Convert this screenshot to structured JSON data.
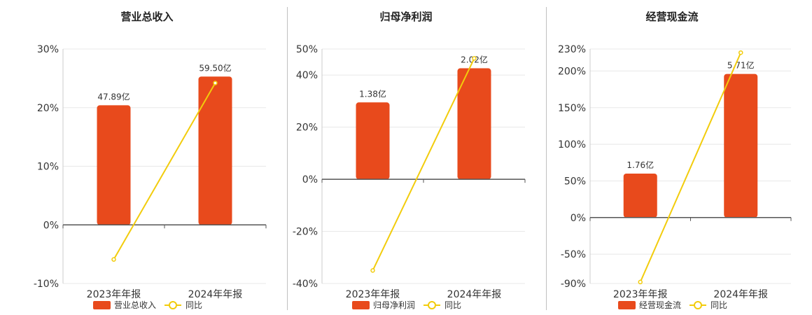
{
  "colors": {
    "bar": "#e84a1c",
    "line": "#f2cc0c",
    "grid": "#e8e8e8",
    "axis": "#555555"
  },
  "legend": {
    "yoy_label": "同比"
  },
  "chart_data": [
    {
      "type": "bar",
      "title": "营业总收入",
      "categories": [
        "2023年年报",
        "2024年年报"
      ],
      "values": [
        20.4,
        25.3
      ],
      "bar_labels": [
        "47.89亿",
        "59.50亿"
      ],
      "series": [
        {
          "name": "营业总收入",
          "kind": "bar",
          "values": [
            20.4,
            25.3
          ]
        },
        {
          "name": "同比",
          "kind": "line",
          "values": [
            -5.9,
            24.2
          ]
        }
      ],
      "ylim": [
        -10,
        30
      ],
      "yticks": [
        -10,
        0,
        10,
        20,
        30
      ],
      "ytick_labels": [
        "-10%",
        "0%",
        "10%",
        "20%",
        "30%"
      ],
      "legend_position": "bottom",
      "grid": true
    },
    {
      "type": "bar",
      "title": "归母净利润",
      "categories": [
        "2023年年报",
        "2024年年报"
      ],
      "values": [
        29.5,
        42.6
      ],
      "bar_labels": [
        "1.38亿",
        "2.02亿"
      ],
      "series": [
        {
          "name": "归母净利润",
          "kind": "bar",
          "values": [
            29.5,
            42.6
          ]
        },
        {
          "name": "同比",
          "kind": "line",
          "values": [
            -35.0,
            46.4
          ]
        }
      ],
      "ylim": [
        -40,
        50
      ],
      "yticks": [
        -40,
        -20,
        0,
        20,
        40,
        50
      ],
      "ytick_labels": [
        "-40%",
        "-20%",
        "0%",
        "20%",
        "40%",
        "50%"
      ],
      "legend_position": "bottom",
      "grid": true
    },
    {
      "type": "bar",
      "title": "经营现金流",
      "categories": [
        "2023年年报",
        "2024年年报"
      ],
      "values": [
        60,
        196
      ],
      "bar_labels": [
        "1.76亿",
        "5.71亿"
      ],
      "series": [
        {
          "name": "经营现金流",
          "kind": "bar",
          "values": [
            60,
            196
          ]
        },
        {
          "name": "同比",
          "kind": "line",
          "values": [
            -88,
            225
          ]
        }
      ],
      "ylim": [
        -90,
        230
      ],
      "yticks": [
        -90,
        -50,
        0,
        50,
        100,
        150,
        200,
        230
      ],
      "ytick_labels": [
        "-90%",
        "-50%",
        "0%",
        "50%",
        "100%",
        "150%",
        "200%",
        "230%"
      ],
      "legend_position": "bottom",
      "grid": true
    }
  ]
}
